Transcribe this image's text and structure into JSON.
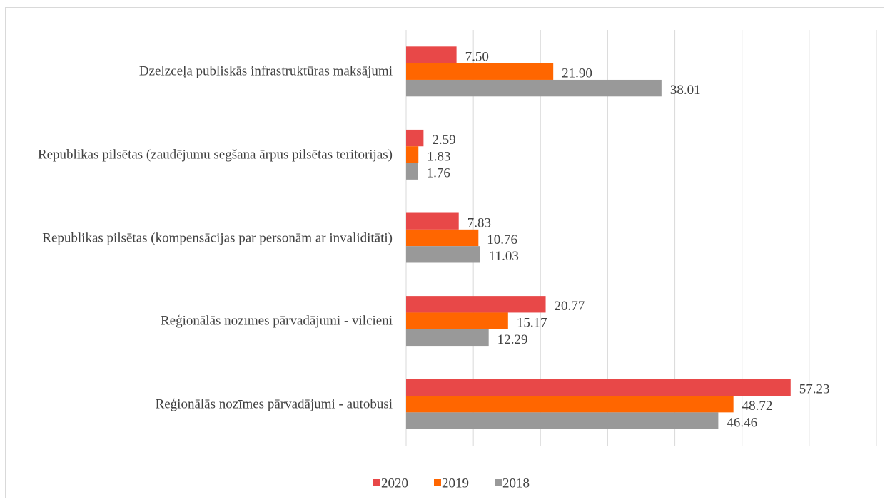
{
  "chart_data": {
    "type": "bar",
    "orientation": "horizontal",
    "categories": [
      "Dzelzceļa publiskās infrastruktūras maksājumi",
      "Republikas pilsētas (zaudējumu segšana ārpus pilsētas teritorijas)",
      "Republikas pilsētas (kompensācijas par personām ar invaliditāti)",
      "Reģionālās nozīmes pārvadājumi - vilcieni",
      "Reģionālās nozīmes pārvadājumi - autobusi"
    ],
    "series": [
      {
        "name": "2020",
        "color": "#e84848",
        "values": [
          7.5,
          2.59,
          7.83,
          20.77,
          57.23
        ],
        "value_labels": [
          "7.50",
          "2.59",
          "7.83",
          "20.77",
          "57.23"
        ]
      },
      {
        "name": "2019",
        "color": "#ff6600",
        "values": [
          21.9,
          1.83,
          10.76,
          15.17,
          48.72
        ],
        "value_labels": [
          "21.90",
          "1.83",
          "10.76",
          "15.17",
          "48.72"
        ]
      },
      {
        "name": "2018",
        "color": "#999999",
        "values": [
          38.01,
          1.76,
          11.03,
          12.29,
          46.46
        ],
        "value_labels": [
          "38.01",
          "1.76",
          "11.03",
          "12.29",
          "46.46"
        ]
      }
    ],
    "xlim": [
      0,
      70
    ],
    "xticks": [
      0,
      10,
      20,
      30,
      40,
      50,
      60,
      70
    ],
    "grid": true,
    "legend": "bottom"
  }
}
